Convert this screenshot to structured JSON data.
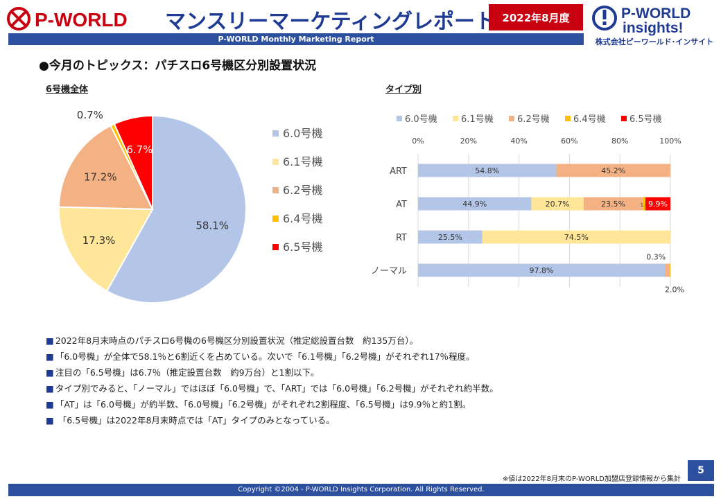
{
  "header": {
    "brand_left": "P-WORLD",
    "title": "マンスリーマーケティングレポート",
    "date": "2022年8月度",
    "subtitle": "P-WORLD Monthly Marketing Report",
    "brand_right_line1": "P-WORLD",
    "brand_right_line2": "insights!",
    "brand_right_jp": "株式会社ピーワールド･インサイト",
    "brand_color": "#c8000f",
    "accent_color": "#2c4f9e"
  },
  "topic": "●今月のトピックス：パチスロ6号機区分別設置状況",
  "section_labels": {
    "all": "6号機全体",
    "type": "タイプ別"
  },
  "chart_data": [
    {
      "type": "pie",
      "title": "",
      "slices": [
        {
          "label": "6.0号機",
          "value": 58.1,
          "display": "58.1%",
          "color": "#b4c6e7"
        },
        {
          "label": "6.1号機",
          "value": 17.3,
          "display": "17.3%",
          "color": "#ffe699"
        },
        {
          "label": "6.2号機",
          "value": 17.2,
          "display": "17.2%",
          "color": "#f4b183"
        },
        {
          "label": "6.4号機",
          "value": 0.7,
          "display": "0.7%",
          "color": "#ffc000"
        },
        {
          "label": "6.5号機",
          "value": 6.7,
          "display": "6.7%",
          "color": "#ff0000"
        }
      ],
      "legend_position": "right"
    },
    {
      "type": "bar",
      "orientation": "horizontal",
      "stacked": "percent",
      "categories": [
        "ART",
        "AT",
        "RT",
        "ノーマル"
      ],
      "series": [
        {
          "name": "6.0号機",
          "color": "#b4c6e7",
          "values": [
            54.8,
            44.9,
            25.5,
            97.8
          ],
          "labels": [
            "54.8%",
            "44.9%",
            "25.5%",
            "97.8%"
          ]
        },
        {
          "name": "6.1号機",
          "color": "#ffe699",
          "values": [
            0,
            20.7,
            74.5,
            0
          ],
          "labels": [
            "",
            "20.7%",
            "74.5%",
            ""
          ]
        },
        {
          "name": "6.2号機",
          "color": "#f4b183",
          "values": [
            45.2,
            23.5,
            0,
            2.0
          ],
          "labels": [
            "45.2%",
            "23.5%",
            "",
            "2.0%"
          ]
        },
        {
          "name": "6.4号機",
          "color": "#ffc000",
          "values": [
            0,
            1.0,
            0,
            0.3
          ],
          "labels": [
            "",
            "1.0",
            "",
            "0.3%"
          ]
        },
        {
          "name": "6.5号機",
          "color": "#ff0000",
          "values": [
            0,
            9.9,
            0,
            0
          ],
          "labels": [
            "",
            "9.9%",
            "",
            ""
          ]
        }
      ],
      "x_ticks": [
        "0%",
        "20%",
        "40%",
        "60%",
        "80%",
        "100%"
      ],
      "xlim": [
        0,
        100
      ],
      "legend_position": "top",
      "grid": true
    }
  ],
  "notes": [
    "2022年8月末時点のパチスロ6号機の6号機区分別設置状況（推定総設置台数　約135万台）。",
    "「6.0号機」が全体で58.1％と6割近くを占めている。次いで「6.1号機」「6.2号機」がそれぞれ17％程度。",
    "注目の「6.5号機」は6.7％（推定設置台数　約9万台）と1割以下。",
    "タイプ別でみると、「ノーマル」ではほぼ「6.0号機」で、「ART」では「6.0号機」「6.2号機」がそれぞれ約半数。",
    "「AT」は「6.0号機」が約半数、「6.0号機」「6.2号機」がそれぞれ2割程度、「6.5号機」は9.9％と約1割。",
    " 「6.5号機」は2022年8月末時点では「AT」タイプのみとなっている。"
  ],
  "note_bullet": "■",
  "footer": {
    "source": "※値は2022年8月末のP-WORLD加盟店登録情報から集計",
    "page": "5",
    "copyright": "Copyright ©2004 -  P-WORLD Insights Corporation. All Rights Reserved."
  }
}
